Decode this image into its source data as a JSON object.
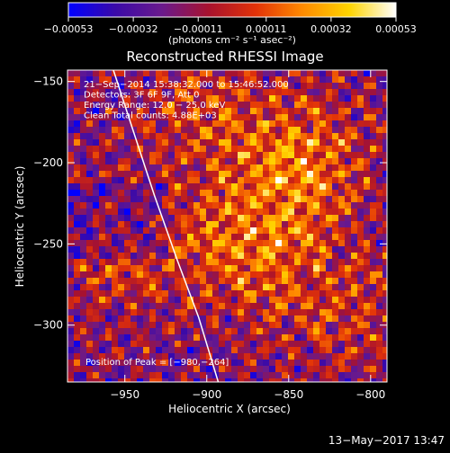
{
  "chart_data": {
    "type": "heatmap",
    "title": "Reconstructed RHESSI Image",
    "xlabel": "Heliocentric X (arcsec)",
    "ylabel": "Heliocentric Y (arcsec)",
    "x_range": [
      -985,
      -790
    ],
    "y_range": [
      -335,
      -143
    ],
    "x_ticks": [
      -950,
      -900,
      -850,
      -800
    ],
    "x_tick_labels": [
      "−950",
      "−900",
      "−850",
      "−800"
    ],
    "y_ticks": [
      -150,
      -200,
      -250,
      -300
    ],
    "y_tick_labels": [
      "−150",
      "−200",
      "−250",
      "−300"
    ],
    "colorbar": {
      "range": [
        -0.00053,
        0.00053
      ],
      "ticks": [
        -0.00053,
        -0.00032,
        -0.00011,
        0.00011,
        0.00032,
        0.00053
      ],
      "tick_labels": [
        "−0.00053",
        "−0.00032",
        "−0.00011",
        "0.00011",
        "0.00032",
        "0.00053"
      ],
      "units_label": "(photons cm⁻² s⁻¹ asec⁻²)",
      "colormap": [
        "#0000ff",
        "#3a0aa8",
        "#6a1a8c",
        "#a8122e",
        "#e23208",
        "#ff8a00",
        "#ffd400",
        "#ffffff"
      ]
    },
    "annotations": [
      "21−Sep−2014 15:38:32.000 to 15:46:52.000",
      "Detectors: 3F 6F 9F, Att 0",
      "Energy Range: 12.0 − 25.0 keV",
      "Clean     Total counts: 4.88E+03"
    ],
    "peak_label": "Position of Peak = [−980,−264]",
    "peak_position": [
      -980,
      -264
    ],
    "limb_curve": [
      [
        -957,
        -143
      ],
      [
        -945,
        -180
      ],
      [
        -932,
        -220
      ],
      [
        -918,
        -260
      ],
      [
        -905,
        -295
      ],
      [
        -893,
        -335
      ]
    ],
    "limb_color": "#ffffff",
    "timestamp": "13−May−2017 13:47"
  }
}
